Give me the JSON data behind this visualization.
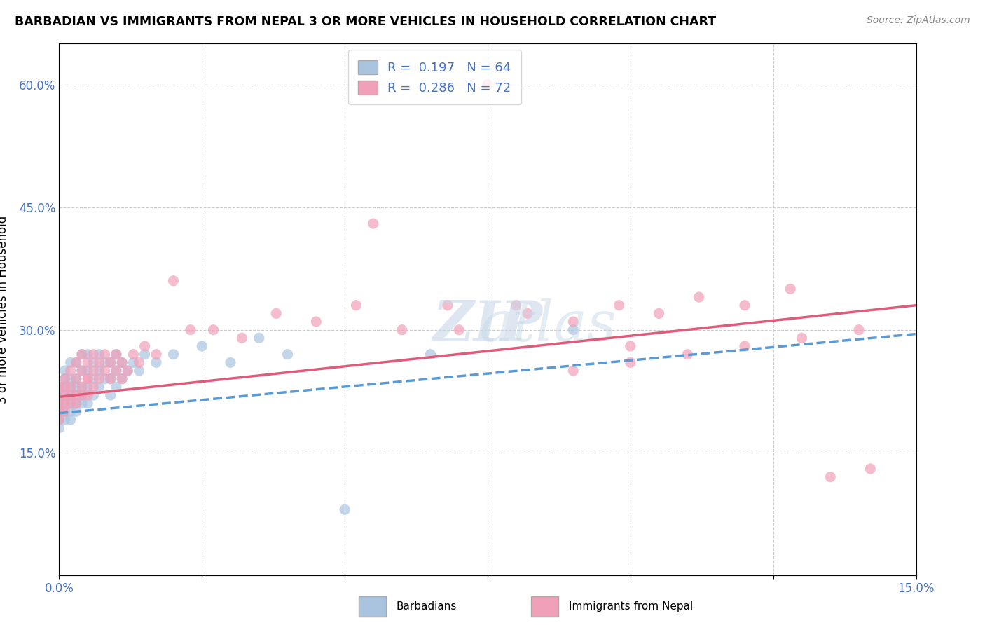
{
  "title": "BARBADIAN VS IMMIGRANTS FROM NEPAL 3 OR MORE VEHICLES IN HOUSEHOLD CORRELATION CHART",
  "source": "Source: ZipAtlas.com",
  "legend_bottom": [
    "Barbadians",
    "Immigrants from Nepal"
  ],
  "r1": 0.197,
  "n1": 64,
  "r2": 0.286,
  "n2": 72,
  "color_barbadian": "#aac4e0",
  "color_nepal": "#f0a0b8",
  "color_line_barbadian": "#5b9bd5",
  "color_line_nepal": "#e05a7a",
  "color_text_blue": "#4472c4",
  "barbadian_x": [
    0.0,
    0.0,
    0.0,
    0.0,
    0.0,
    0.0,
    0.001,
    0.001,
    0.001,
    0.001,
    0.001,
    0.001,
    0.001,
    0.002,
    0.002,
    0.002,
    0.002,
    0.002,
    0.002,
    0.002,
    0.003,
    0.003,
    0.003,
    0.003,
    0.003,
    0.003,
    0.004,
    0.004,
    0.004,
    0.004,
    0.004,
    0.005,
    0.005,
    0.005,
    0.005,
    0.006,
    0.006,
    0.006,
    0.007,
    0.007,
    0.007,
    0.008,
    0.008,
    0.009,
    0.009,
    0.009,
    0.01,
    0.01,
    0.01,
    0.011,
    0.011,
    0.012,
    0.013,
    0.014,
    0.015,
    0.017,
    0.02,
    0.025,
    0.03,
    0.035,
    0.04,
    0.05,
    0.065,
    0.09
  ],
  "barbadian_y": [
    0.2,
    0.22,
    0.19,
    0.21,
    0.18,
    0.23,
    0.2,
    0.22,
    0.24,
    0.21,
    0.19,
    0.23,
    0.25,
    0.21,
    0.23,
    0.2,
    0.22,
    0.24,
    0.26,
    0.19,
    0.22,
    0.24,
    0.2,
    0.26,
    0.21,
    0.23,
    0.22,
    0.25,
    0.21,
    0.23,
    0.27,
    0.23,
    0.25,
    0.21,
    0.27,
    0.24,
    0.22,
    0.26,
    0.23,
    0.25,
    0.27,
    0.24,
    0.26,
    0.22,
    0.24,
    0.26,
    0.23,
    0.25,
    0.27,
    0.24,
    0.26,
    0.25,
    0.26,
    0.25,
    0.27,
    0.26,
    0.27,
    0.28,
    0.26,
    0.29,
    0.27,
    0.08,
    0.27,
    0.3
  ],
  "nepal_x": [
    0.0,
    0.0,
    0.0,
    0.0,
    0.001,
    0.001,
    0.001,
    0.001,
    0.001,
    0.002,
    0.002,
    0.002,
    0.002,
    0.003,
    0.003,
    0.003,
    0.003,
    0.004,
    0.004,
    0.004,
    0.004,
    0.005,
    0.005,
    0.005,
    0.005,
    0.006,
    0.006,
    0.006,
    0.007,
    0.007,
    0.008,
    0.008,
    0.009,
    0.009,
    0.01,
    0.01,
    0.011,
    0.011,
    0.012,
    0.013,
    0.014,
    0.015,
    0.017,
    0.02,
    0.023,
    0.027,
    0.032,
    0.038,
    0.045,
    0.052,
    0.06,
    0.068,
    0.075,
    0.082,
    0.09,
    0.098,
    0.105,
    0.112,
    0.12,
    0.128,
    0.135,
    0.142,
    0.1,
    0.055,
    0.07,
    0.08,
    0.09,
    0.1,
    0.11,
    0.12,
    0.13,
    0.14
  ],
  "nepal_y": [
    0.21,
    0.23,
    0.2,
    0.19,
    0.22,
    0.24,
    0.21,
    0.23,
    0.2,
    0.22,
    0.25,
    0.21,
    0.23,
    0.24,
    0.22,
    0.26,
    0.21,
    0.23,
    0.25,
    0.22,
    0.27,
    0.24,
    0.22,
    0.26,
    0.24,
    0.25,
    0.23,
    0.27,
    0.24,
    0.26,
    0.25,
    0.27,
    0.24,
    0.26,
    0.25,
    0.27,
    0.24,
    0.26,
    0.25,
    0.27,
    0.26,
    0.28,
    0.27,
    0.36,
    0.3,
    0.3,
    0.29,
    0.32,
    0.31,
    0.33,
    0.3,
    0.33,
    0.6,
    0.32,
    0.31,
    0.33,
    0.32,
    0.34,
    0.33,
    0.35,
    0.12,
    0.13,
    0.28,
    0.43,
    0.3,
    0.33,
    0.25,
    0.26,
    0.27,
    0.28,
    0.29,
    0.3
  ],
  "trendline_b_x0": 0.0,
  "trendline_b_y0": 0.198,
  "trendline_b_x1": 0.15,
  "trendline_b_y1": 0.295,
  "trendline_n_x0": 0.0,
  "trendline_n_y0": 0.218,
  "trendline_n_x1": 0.15,
  "trendline_n_y1": 0.33,
  "xmin": 0.0,
  "xmax": 0.15,
  "ymin": 0.0,
  "ymax": 0.65,
  "bg_color": "#ffffff",
  "grid_color": "#cccccc"
}
